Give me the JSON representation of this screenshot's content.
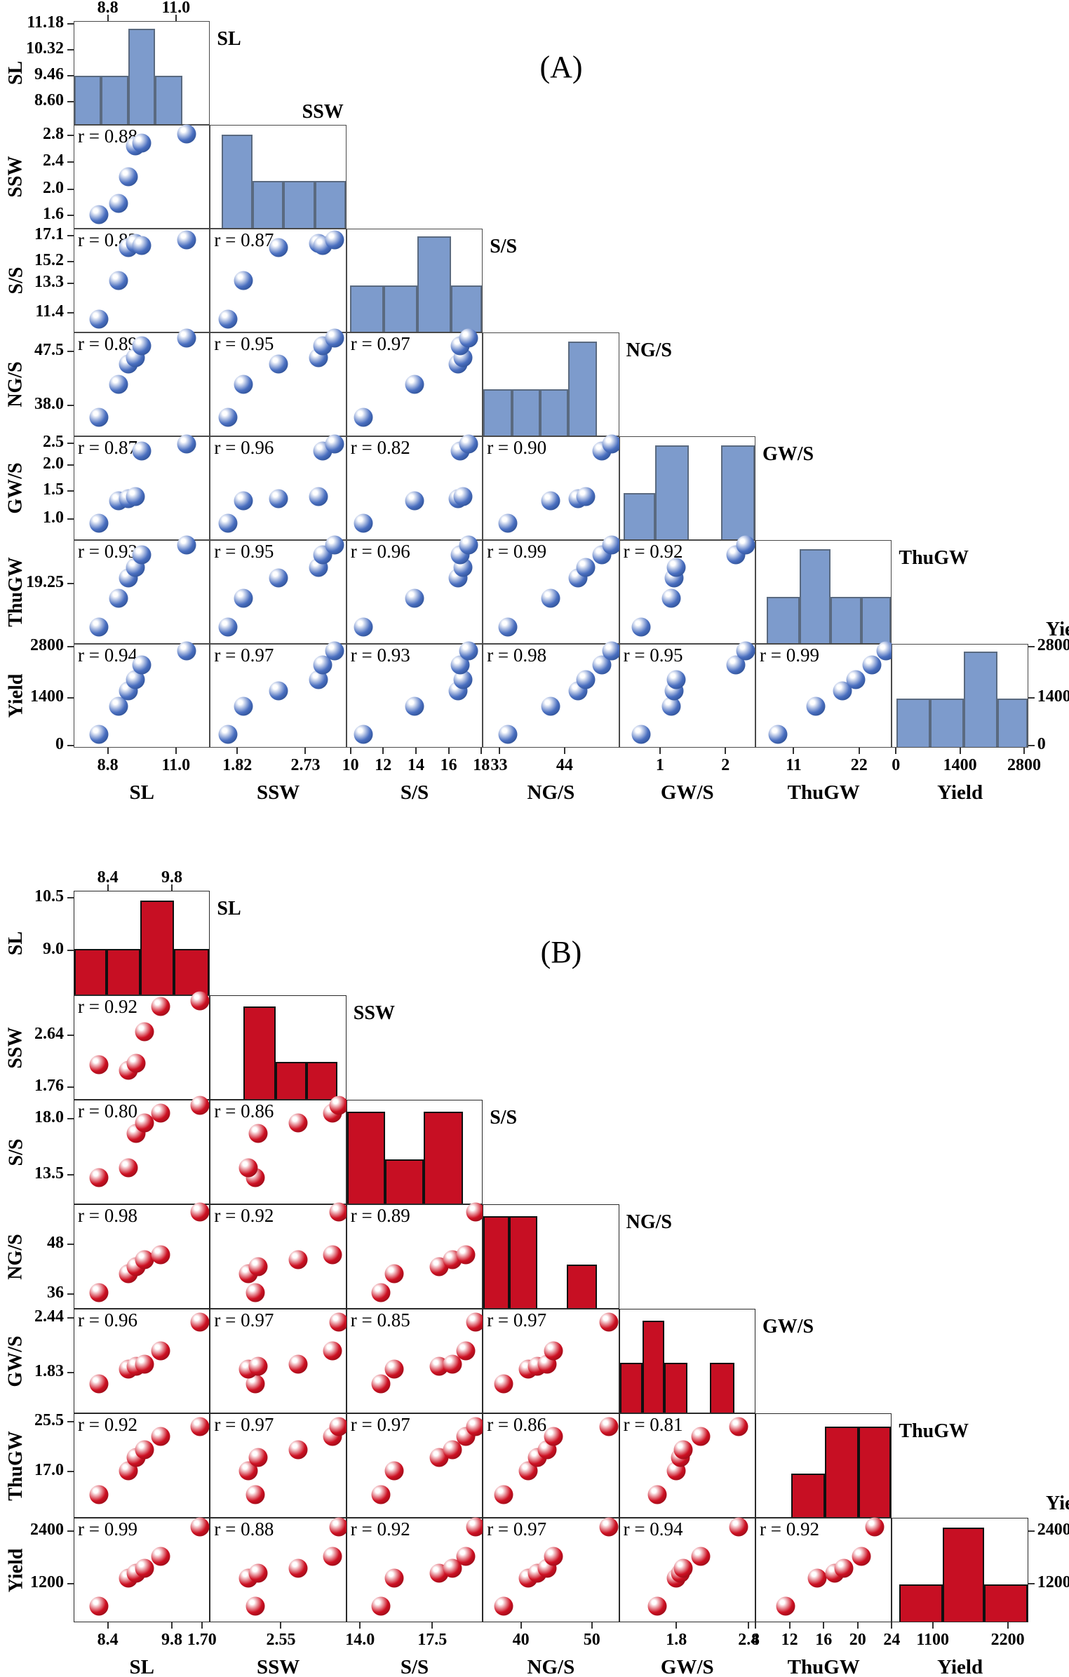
{
  "titles": {
    "panel_a": "(A)",
    "panel_b": "(B)"
  },
  "r_label_prefix": "r = ",
  "chart_data": [
    {
      "panel": "A",
      "type": "scatter-matrix",
      "marker_count_per_cell": 6,
      "colors": {
        "marker": "#4a6fc0",
        "marker_dark": "#1e3f7d",
        "bar_fill": "#7d9bcc",
        "bar_border": "#5a6a80",
        "frame": "#4a4a4a"
      },
      "top_axis": {
        "ticks": [
          {
            "label": "8.8",
            "pos": 0.25
          },
          {
            "label": "11.0",
            "pos": 0.75
          }
        ]
      },
      "right_axis": {
        "title": "Yield",
        "ticks": [
          {
            "label": "2800",
            "pos": 0.97
          },
          {
            "label": "1400",
            "pos": 0.48
          },
          {
            "label": "0",
            "pos": 0.02
          }
        ]
      },
      "variables": [
        {
          "name": "SL",
          "label_pos": "right",
          "left_ticks": [
            {
              "label": "11.18",
              "pos": 0.97
            },
            {
              "label": "10.32",
              "pos": 0.72
            },
            {
              "label": "9.46",
              "pos": 0.47
            },
            {
              "label": "8.60",
              "pos": 0.22
            }
          ],
          "bottom_ticks": [
            {
              "label": "8.8",
              "pos": 0.25
            },
            {
              "label": "11.0",
              "pos": 0.75
            }
          ],
          "hist": [
            [
              0,
              0.2,
              0.47
            ],
            [
              0.2,
              0.4,
              0.47
            ],
            [
              0.4,
              0.6,
              0.93
            ],
            [
              0.6,
              0.8,
              0.47
            ]
          ],
          "observations": [
            0.18,
            0.33,
            0.4,
            0.45,
            0.5,
            0.83
          ]
        },
        {
          "name": "SSW",
          "label_pos": "above-right",
          "left_ticks": [
            {
              "label": "2.8",
              "pos": 0.9
            },
            {
              "label": "2.4",
              "pos": 0.64
            },
            {
              "label": "2.0",
              "pos": 0.38
            },
            {
              "label": "1.6",
              "pos": 0.13
            }
          ],
          "bottom_ticks": [
            {
              "label": "1.82",
              "pos": 0.2
            },
            {
              "label": "2.73",
              "pos": 0.7
            }
          ],
          "hist": [
            [
              0.08,
              0.31,
              0.91
            ],
            [
              0.31,
              0.54,
              0.46
            ],
            [
              0.54,
              0.77,
              0.46
            ],
            [
              0.77,
              1.0,
              0.46
            ]
          ],
          "observations": [
            0.13,
            0.24,
            0.5,
            0.8,
            0.83,
            0.92
          ]
        },
        {
          "name": "S/S",
          "label_pos": "right",
          "left_ticks": [
            {
              "label": "17.1",
              "pos": 0.93
            },
            {
              "label": "15.2",
              "pos": 0.68
            },
            {
              "label": "13.3",
              "pos": 0.47
            },
            {
              "label": "11.4",
              "pos": 0.19
            }
          ],
          "bottom_ticks": [
            {
              "label": "10",
              "pos": 0.03
            },
            {
              "label": "12",
              "pos": 0.27
            },
            {
              "label": "14",
              "pos": 0.51
            },
            {
              "label": "16",
              "pos": 0.75
            },
            {
              "label": "18",
              "pos": 0.99
            }
          ],
          "hist": [
            [
              0.02,
              0.27,
              0.45
            ],
            [
              0.27,
              0.52,
              0.45
            ],
            [
              0.52,
              0.77,
              0.93
            ],
            [
              0.77,
              1.0,
              0.45
            ]
          ],
          "observations": [
            0.12,
            0.5,
            0.82,
            0.86,
            0.84,
            0.9
          ]
        },
        {
          "name": "NG/S",
          "label_pos": "right",
          "left_ticks": [
            {
              "label": "47.5",
              "pos": 0.82
            },
            {
              "label": "38.0",
              "pos": 0.3
            }
          ],
          "bottom_ticks": [
            {
              "label": "33",
              "pos": 0.12
            },
            {
              "label": "44",
              "pos": 0.6
            }
          ],
          "hist": [
            [
              0,
              0.21,
              0.45
            ],
            [
              0.21,
              0.42,
              0.45
            ],
            [
              0.42,
              0.63,
              0.45
            ],
            [
              0.63,
              0.84,
              0.92
            ]
          ],
          "observations": [
            0.18,
            0.5,
            0.7,
            0.76,
            0.88,
            0.95
          ]
        },
        {
          "name": "GW/S",
          "label_pos": "right",
          "left_ticks": [
            {
              "label": "2.5",
              "pos": 0.93
            },
            {
              "label": "2.0",
              "pos": 0.72
            },
            {
              "label": "1.5",
              "pos": 0.47
            },
            {
              "label": "1.0",
              "pos": 0.2
            }
          ],
          "bottom_ticks": [
            {
              "label": "1",
              "pos": 0.3
            },
            {
              "label": "2",
              "pos": 0.78
            }
          ],
          "hist": [
            [
              0.03,
              0.26,
              0.45
            ],
            [
              0.26,
              0.51,
              0.92
            ],
            [
              0.75,
              1.0,
              0.92
            ]
          ],
          "observations": [
            0.16,
            0.38,
            0.4,
            0.42,
            0.86,
            0.93
          ]
        },
        {
          "name": "ThuGW",
          "label_pos": "right",
          "left_ticks": [
            {
              "label": "19.25",
              "pos": 0.58
            }
          ],
          "bottom_ticks": [
            {
              "label": "11",
              "pos": 0.28
            },
            {
              "label": "22",
              "pos": 0.76
            }
          ],
          "hist": [
            [
              0.08,
              0.32,
              0.45
            ],
            [
              0.32,
              0.55,
              0.92
            ],
            [
              0.55,
              0.78,
              0.45
            ],
            [
              0.78,
              1.0,
              0.45
            ]
          ],
          "observations": [
            0.16,
            0.44,
            0.64,
            0.74,
            0.86,
            0.96
          ]
        },
        {
          "name": "Yield",
          "label_pos": "right-axis",
          "left_ticks": [
            {
              "label": "2800",
              "pos": 0.97
            },
            {
              "label": "1400",
              "pos": 0.48
            },
            {
              "label": "0",
              "pos": 0.02
            }
          ],
          "bottom_ticks": [
            {
              "label": "0",
              "pos": 0.03
            },
            {
              "label": "1400",
              "pos": 0.5
            },
            {
              "label": "2800",
              "pos": 0.97
            }
          ],
          "hist": [
            [
              0.03,
              0.28,
              0.47
            ],
            [
              0.28,
              0.53,
              0.47
            ],
            [
              0.53,
              0.78,
              0.93
            ],
            [
              0.78,
              1.0,
              0.47
            ]
          ],
          "observations": [
            0.12,
            0.4,
            0.55,
            0.66,
            0.8,
            0.94
          ]
        }
      ],
      "correlations": [
        [
          0.88
        ],
        [
          0.82,
          0.87
        ],
        [
          0.89,
          0.95,
          0.97
        ],
        [
          0.87,
          0.96,
          0.82,
          0.9
        ],
        [
          0.93,
          0.95,
          0.96,
          0.99,
          0.92
        ],
        [
          0.94,
          0.97,
          0.93,
          0.98,
          0.95,
          0.99
        ]
      ]
    },
    {
      "panel": "B",
      "type": "scatter-matrix",
      "marker_count_per_cell": 6,
      "colors": {
        "marker": "#cd1022",
        "marker_dark": "#7a0a12",
        "bar_fill": "#c70f23",
        "bar_border": "#101010",
        "frame": "#2a2a2a"
      },
      "top_axis": {
        "ticks": [
          {
            "label": "8.4",
            "pos": 0.25
          },
          {
            "label": "9.8",
            "pos": 0.72
          }
        ]
      },
      "right_axis": {
        "title": "Yield",
        "ticks": [
          {
            "label": "2400",
            "pos": 0.87
          },
          {
            "label": "1200",
            "pos": 0.37
          }
        ]
      },
      "variables": [
        {
          "name": "SL",
          "label_pos": "right",
          "left_ticks": [
            {
              "label": "10.5",
              "pos": 0.93
            },
            {
              "label": "9.0",
              "pos": 0.43
            }
          ],
          "bottom_ticks": [
            {
              "label": "8.4",
              "pos": 0.25
            },
            {
              "label": "9.8",
              "pos": 0.72
            }
          ],
          "hist": [
            [
              0,
              0.24,
              0.44
            ],
            [
              0.24,
              0.49,
              0.44
            ],
            [
              0.49,
              0.74,
              0.91
            ],
            [
              0.74,
              1.0,
              0.44
            ]
          ],
          "observations": [
            0.18,
            0.4,
            0.46,
            0.52,
            0.64,
            0.93
          ]
        },
        {
          "name": "SSW",
          "label_pos": "right",
          "left_ticks": [
            {
              "label": "2.64",
              "pos": 0.62
            },
            {
              "label": "1.76",
              "pos": 0.12
            }
          ],
          "bottom_ticks": [
            {
              "label": "1.70",
              "pos": -0.06
            },
            {
              "label": "2.55",
              "pos": 0.52
            }
          ],
          "hist": [
            [
              0.24,
              0.48,
              0.9
            ],
            [
              0.48,
              0.71,
              0.36
            ],
            [
              0.71,
              0.94,
              0.36
            ]
          ],
          "observations": [
            0.33,
            0.28,
            0.35,
            0.65,
            0.9,
            0.95
          ]
        },
        {
          "name": "S/S",
          "label_pos": "right",
          "left_ticks": [
            {
              "label": "18.0",
              "pos": 0.82
            },
            {
              "label": "13.5",
              "pos": 0.28
            }
          ],
          "bottom_ticks": [
            {
              "label": "14.0",
              "pos": 0.1
            },
            {
              "label": "17.5",
              "pos": 0.63
            }
          ],
          "hist": [
            [
              0,
              0.28,
              0.89
            ],
            [
              0.28,
              0.57,
              0.43
            ],
            [
              0.57,
              0.86,
              0.89
            ]
          ],
          "observations": [
            0.25,
            0.35,
            0.68,
            0.78,
            0.88,
            0.95
          ]
        },
        {
          "name": "NG/S",
          "label_pos": "right",
          "left_ticks": [
            {
              "label": "48",
              "pos": 0.62
            },
            {
              "label": "36",
              "pos": 0.14
            }
          ],
          "bottom_ticks": [
            {
              "label": "40",
              "pos": 0.28
            },
            {
              "label": "50",
              "pos": 0.8
            }
          ],
          "hist": [
            [
              0,
              0.19,
              0.89
            ],
            [
              0.19,
              0.4,
              0.89
            ],
            [
              0.62,
              0.84,
              0.42
            ]
          ],
          "observations": [
            0.15,
            0.33,
            0.4,
            0.47,
            0.52,
            0.93
          ]
        },
        {
          "name": "GW/S",
          "label_pos": "right",
          "left_ticks": [
            {
              "label": "2.44",
              "pos": 0.91
            },
            {
              "label": "1.83",
              "pos": 0.39
            }
          ],
          "bottom_ticks": [
            {
              "label": "1.8",
              "pos": 0.42
            },
            {
              "label": "2.4",
              "pos": 0.95
            }
          ],
          "hist": [
            [
              0,
              0.17,
              0.48
            ],
            [
              0.17,
              0.33,
              0.89
            ],
            [
              0.33,
              0.5,
              0.48
            ],
            [
              0.67,
              0.85,
              0.48
            ]
          ],
          "observations": [
            0.28,
            0.42,
            0.45,
            0.47,
            0.6,
            0.88
          ]
        },
        {
          "name": "ThuGW",
          "label_pos": "right",
          "left_ticks": [
            {
              "label": "25.5",
              "pos": 0.92
            },
            {
              "label": "17.0",
              "pos": 0.44
            }
          ],
          "bottom_ticks": [
            {
              "label": "8",
              "pos": 0.0
            },
            {
              "label": "12",
              "pos": 0.25
            },
            {
              "label": "16",
              "pos": 0.5
            },
            {
              "label": "20",
              "pos": 0.75
            },
            {
              "label": "24",
              "pos": 1.0
            }
          ],
          "hist": [
            [
              0.26,
              0.51,
              0.42
            ],
            [
              0.51,
              0.76,
              0.88
            ],
            [
              0.76,
              1.0,
              0.88
            ]
          ],
          "observations": [
            0.22,
            0.45,
            0.58,
            0.65,
            0.78,
            0.88
          ]
        },
        {
          "name": "Yield",
          "label_pos": "right-axis",
          "left_ticks": [
            {
              "label": "2400",
              "pos": 0.87
            },
            {
              "label": "1200",
              "pos": 0.37
            }
          ],
          "bottom_ticks": [
            {
              "label": "1100",
              "pos": 0.3
            },
            {
              "label": "2200",
              "pos": 0.85
            }
          ],
          "hist": [
            [
              0.05,
              0.37,
              0.36
            ],
            [
              0.37,
              0.68,
              0.91
            ],
            [
              0.68,
              1.0,
              0.36
            ]
          ],
          "observations": [
            0.15,
            0.42,
            0.47,
            0.52,
            0.63,
            0.92
          ]
        }
      ],
      "correlations": [
        [
          0.92
        ],
        [
          0.8,
          0.86
        ],
        [
          0.98,
          0.92,
          0.89
        ],
        [
          0.96,
          0.97,
          0.85,
          0.97
        ],
        [
          0.92,
          0.97,
          0.97,
          0.86,
          0.81
        ],
        [
          0.99,
          0.88,
          0.92,
          0.97,
          0.94,
          0.92
        ]
      ]
    }
  ]
}
